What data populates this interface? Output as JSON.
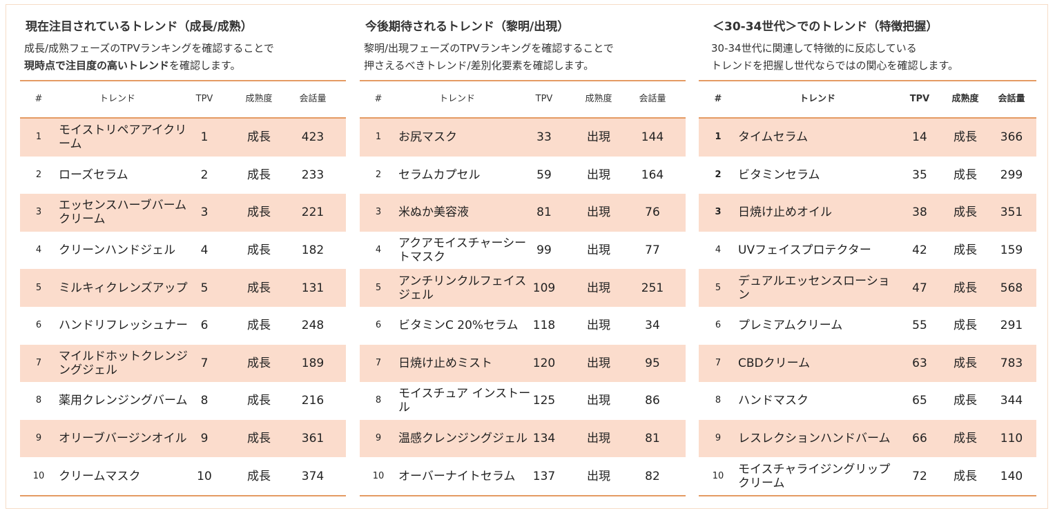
{
  "panels": [
    {
      "title": "現在注目されているトレンド（成長/成熟）",
      "desc_line1": "成長/成熟フェーズのTPVランキングを確認することで",
      "desc_line2_bold": "現時点で注目度の高いトレンド",
      "desc_line2_rest": "を確認します。",
      "headers": {
        "num": "#",
        "trend": "トレンド",
        "tpv": "TPV",
        "maturity": "成熟度",
        "volume": "会話量"
      },
      "rows": [
        {
          "num": "1",
          "trend": "モイストリペアアイクリーム",
          "tpv": "1",
          "maturity": "成長",
          "volume": "423"
        },
        {
          "num": "2",
          "trend": "ローズセラム",
          "tpv": "2",
          "maturity": "成長",
          "volume": "233"
        },
        {
          "num": "3",
          "trend": "エッセンスハーブバームクリーム",
          "tpv": "3",
          "maturity": "成長",
          "volume": "221"
        },
        {
          "num": "4",
          "trend": "クリーンハンドジェル",
          "tpv": "4",
          "maturity": "成長",
          "volume": "182"
        },
        {
          "num": "5",
          "trend": "ミルキィクレンズアップ",
          "tpv": "5",
          "maturity": "成長",
          "volume": "131"
        },
        {
          "num": "6",
          "trend": "ハンドリフレッシュナー",
          "tpv": "6",
          "maturity": "成長",
          "volume": "248"
        },
        {
          "num": "7",
          "trend": "マイルドホットクレンジングジェル",
          "tpv": "7",
          "maturity": "成長",
          "volume": "189"
        },
        {
          "num": "8",
          "trend": "薬用クレンジングバーム",
          "tpv": "8",
          "maturity": "成長",
          "volume": "216"
        },
        {
          "num": "9",
          "trend": "オリーブバージンオイル",
          "tpv": "9",
          "maturity": "成長",
          "volume": "361"
        },
        {
          "num": "10",
          "trend": "クリームマスク",
          "tpv": "10",
          "maturity": "成長",
          "volume": "374"
        }
      ]
    },
    {
      "title": "今後期待されるトレンド（黎明/出現）",
      "desc_line1": "黎明/出現フェーズのTPVランキングを確認することで",
      "desc_line2_bold": "",
      "desc_line2_rest": "押さえるべきトレンド/差別化要素を確認します。",
      "headers": {
        "num": "#",
        "trend": "トレンド",
        "tpv": "TPV",
        "maturity": "成熟度",
        "volume": "会話量"
      },
      "rows": [
        {
          "num": "1",
          "trend": "お尻マスク",
          "tpv": "33",
          "maturity": "出現",
          "volume": "144"
        },
        {
          "num": "2",
          "trend": "セラムカプセル",
          "tpv": "59",
          "maturity": "出現",
          "volume": "164"
        },
        {
          "num": "3",
          "trend": "米ぬか美容液",
          "tpv": "81",
          "maturity": "出現",
          "volume": "76"
        },
        {
          "num": "4",
          "trend": "アクアモイスチャーシートマスク",
          "tpv": "99",
          "maturity": "出現",
          "volume": "77"
        },
        {
          "num": "5",
          "trend": "アンチリンクルフェイスジェル",
          "tpv": "109",
          "maturity": "出現",
          "volume": "251"
        },
        {
          "num": "6",
          "trend": "ビタミンC 20%セラム",
          "tpv": "118",
          "maturity": "出現",
          "volume": "34"
        },
        {
          "num": "7",
          "trend": "日焼け止めミスト",
          "tpv": "120",
          "maturity": "出現",
          "volume": "95"
        },
        {
          "num": "8",
          "trend": "モイスチュア インストール",
          "tpv": "125",
          "maturity": "出現",
          "volume": "86"
        },
        {
          "num": "9",
          "trend": "温感クレンジングジェル",
          "tpv": "134",
          "maturity": "出現",
          "volume": "81"
        },
        {
          "num": "10",
          "trend": "オーバーナイトセラム",
          "tpv": "137",
          "maturity": "出現",
          "volume": "82"
        }
      ]
    },
    {
      "title": "＜30-34世代＞でのトレンド（特徴把握）",
      "desc_line1": "30-34世代に関連して特徴的に反応している",
      "desc_line2_bold": "",
      "desc_line2_rest": "トレンドを把握し世代ならではの関心を確認します。",
      "headers": {
        "num": "#",
        "trend": "トレンド",
        "tpv": "TPV",
        "maturity": "成熟度",
        "volume": "会話量"
      },
      "rows": [
        {
          "num": "1",
          "trend": "タイムセラム",
          "tpv": "14",
          "maturity": "成長",
          "volume": "366"
        },
        {
          "num": "2",
          "trend": "ビタミンセラム",
          "tpv": "35",
          "maturity": "成長",
          "volume": "299"
        },
        {
          "num": "3",
          "trend": "日焼け止めオイル",
          "tpv": "38",
          "maturity": "成長",
          "volume": "351"
        },
        {
          "num": "4",
          "trend": "UVフェイスプロテクター",
          "tpv": "42",
          "maturity": "成長",
          "volume": "159"
        },
        {
          "num": "5",
          "trend": "デュアルエッセンスローション",
          "tpv": "47",
          "maturity": "成長",
          "volume": "568"
        },
        {
          "num": "6",
          "trend": "プレミアムクリーム",
          "tpv": "55",
          "maturity": "成長",
          "volume": "291"
        },
        {
          "num": "7",
          "trend": "CBDクリーム",
          "tpv": "63",
          "maturity": "成長",
          "volume": "783"
        },
        {
          "num": "8",
          "trend": "ハンドマスク",
          "tpv": "65",
          "maturity": "成長",
          "volume": "344"
        },
        {
          "num": "9",
          "trend": "レスレクションハンドバーム",
          "tpv": "66",
          "maturity": "成長",
          "volume": "110"
        },
        {
          "num": "10",
          "trend": "モイスチャライジングリップクリーム",
          "tpv": "72",
          "maturity": "成長",
          "volume": "140"
        }
      ]
    }
  ],
  "colors": {
    "accent_rule": "#e49a62",
    "row_shade": "#fbdccc",
    "frame": "#f6dcc6"
  }
}
